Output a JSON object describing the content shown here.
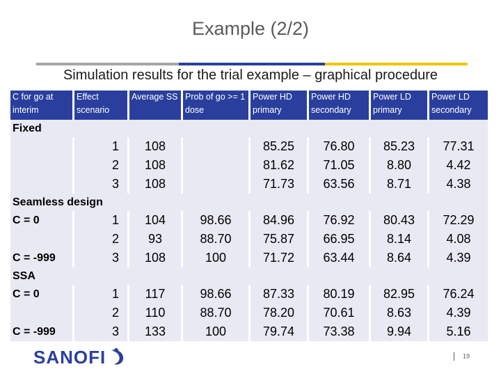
{
  "slide": {
    "title": "Example (2/2)",
    "subtitle": "Simulation results for the trial example – graphical procedure",
    "page_number": "19",
    "logo_text": "SANOFI",
    "rule_colors": [
      "#a6a6a6",
      "#2a3f9d",
      "#f2c500"
    ]
  },
  "table": {
    "headers": [
      "C for go at interim",
      "Effect scenario",
      "Average SS",
      "Prob of go >= 1 dose",
      "Power HD primary",
      "Power  HD secondary",
      "Power  LD primary",
      "Power LD secondary"
    ],
    "sections": [
      {
        "label": "Fixed",
        "rows": [
          [
            "",
            "1",
            "108",
            "",
            "85.25",
            "76.80",
            "85.23",
            "77.31"
          ],
          [
            "",
            "2",
            "108",
            "",
            "81.62",
            "71.05",
            "8.80",
            "4.42"
          ],
          [
            "",
            "3",
            "108",
            "",
            "71.73",
            "63.56",
            "8.71",
            "4.38"
          ]
        ]
      },
      {
        "label": "Seamless design",
        "rows": [
          [
            "C = 0",
            "1",
            "104",
            "98.66",
            "84.96",
            "76.92",
            "80.43",
            "72.29"
          ],
          [
            "",
            "2",
            "93",
            "88.70",
            "75.87",
            "66.95",
            "8.14",
            "4.08"
          ],
          [
            "C = -999",
            "3",
            "108",
            "100",
            "71.72",
            "63.44",
            "8.64",
            "4.39"
          ]
        ]
      },
      {
        "label": "SSA",
        "rows": [
          [
            "C = 0",
            "1",
            "117",
            "98.66",
            "87.33",
            "80.19",
            "82.95",
            "76.24"
          ],
          [
            "",
            "2",
            "110",
            "88.70",
            "78.20",
            "70.61",
            "8.63",
            "4.39"
          ],
          [
            "C = -999",
            "3",
            "133",
            "100",
            "79.74",
            "73.38",
            "9.94",
            "5.16"
          ]
        ]
      }
    ]
  }
}
